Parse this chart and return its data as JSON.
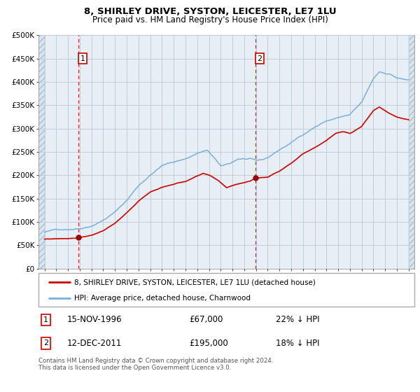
{
  "title": "8, SHIRLEY DRIVE, SYSTON, LEICESTER, LE7 1LU",
  "subtitle": "Price paid vs. HM Land Registry's House Price Index (HPI)",
  "legend_line1": "8, SHIRLEY DRIVE, SYSTON, LEICESTER, LE7 1LU (detached house)",
  "legend_line2": "HPI: Average price, detached house, Charnwood",
  "annotation1_date": 1996.88,
  "annotation1_value": 67000,
  "annotation1_text": "15-NOV-1996",
  "annotation1_price": "£67,000",
  "annotation1_hpi": "22% ↓ HPI",
  "annotation2_date": 2011.95,
  "annotation2_value": 195000,
  "annotation2_text": "12-DEC-2011",
  "annotation2_price": "£195,000",
  "annotation2_hpi": "18% ↓ HPI",
  "hpi_color": "#7ab0d8",
  "price_color": "#cc0000",
  "marker_color": "#990000",
  "plot_bg": "#e8eef5",
  "hatch_bg": "#d8e4ef",
  "grid_color": "#c8d4e0",
  "vline_color": "#dd0000",
  "box_edge_color": "#cc0000",
  "ylim": [
    0,
    500000
  ],
  "yticks": [
    0,
    50000,
    100000,
    150000,
    200000,
    250000,
    300000,
    350000,
    400000,
    450000,
    500000
  ],
  "xlim_start": 1993.5,
  "xlim_end": 2025.5,
  "data_xstart": 1994.0,
  "data_xend": 2025.0,
  "footer": "Contains HM Land Registry data © Crown copyright and database right 2024.\nThis data is licensed under the Open Government Licence v3.0."
}
